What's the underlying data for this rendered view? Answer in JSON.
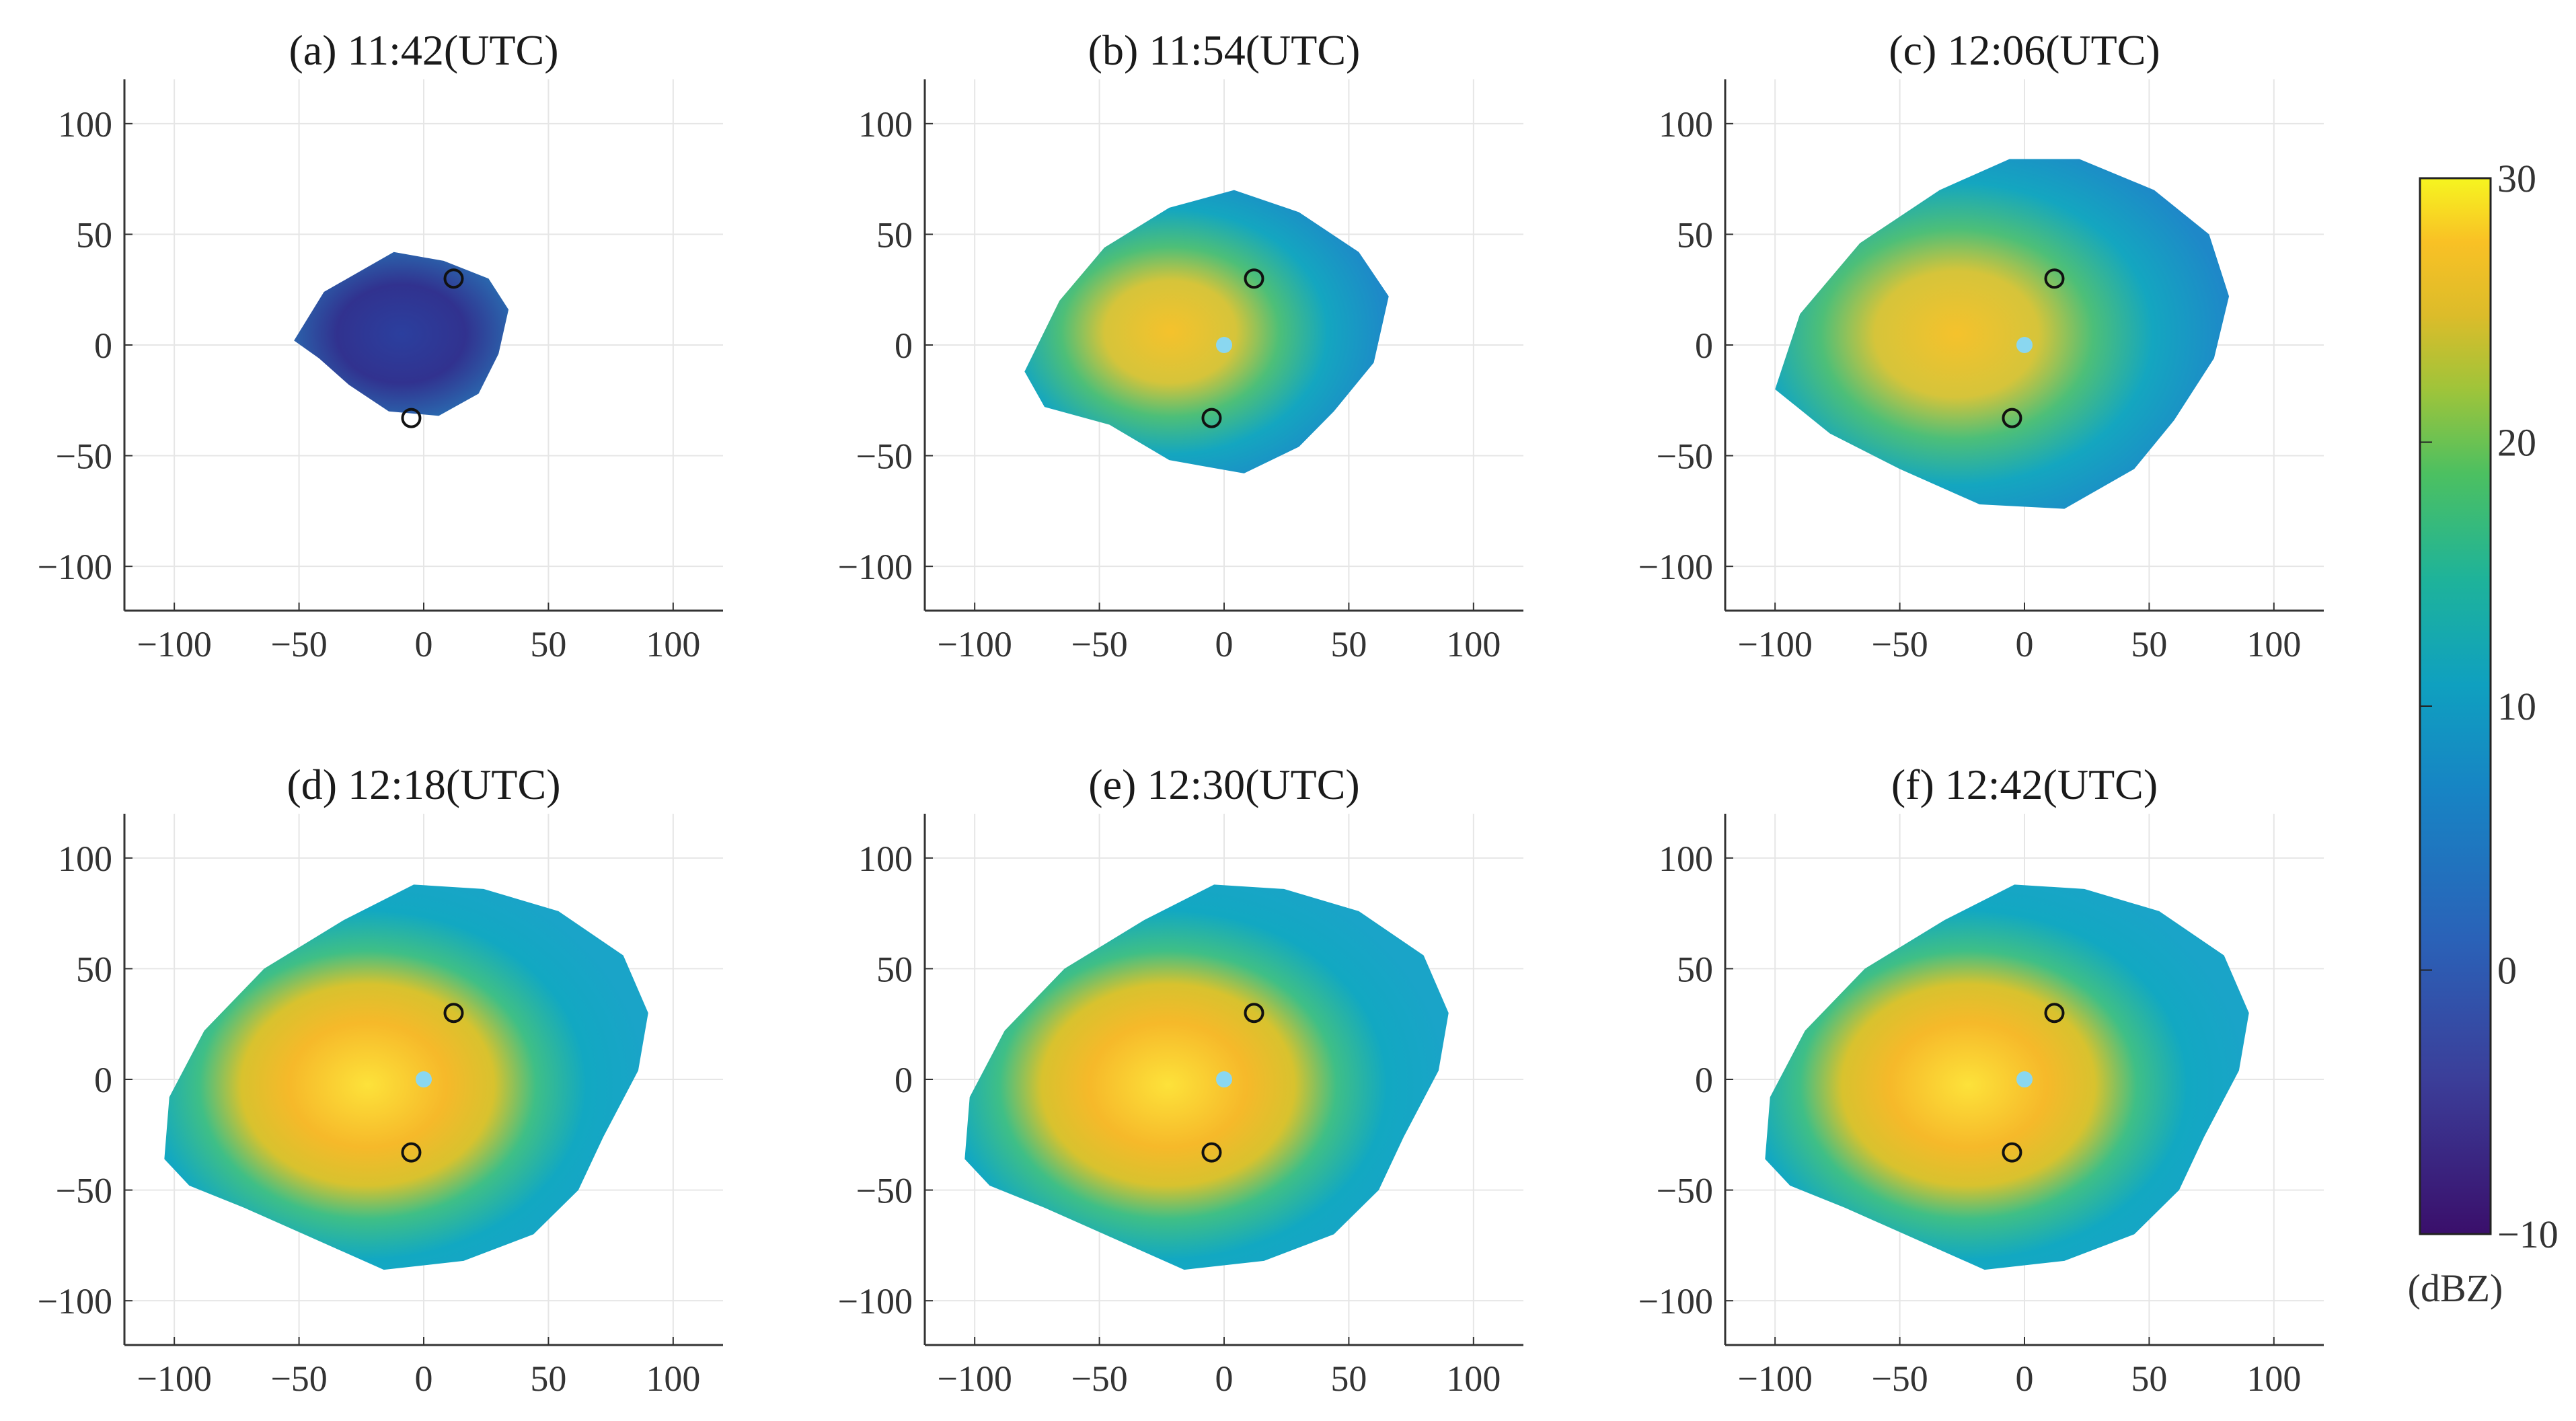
{
  "chart_data": {
    "type": "heatmap",
    "description_units": "dBZ",
    "panels": [
      {
        "label": "(a) 11:42(UTC)",
        "echo_extent": "small"
      },
      {
        "label": "(b) 11:54(UTC)",
        "echo_extent": "medium"
      },
      {
        "label": "(c) 12:06(UTC)",
        "echo_extent": "large"
      },
      {
        "label": "(d) 12:18(UTC)",
        "echo_extent": "full"
      },
      {
        "label": "(e) 12:30(UTC)",
        "echo_extent": "full"
      },
      {
        "label": "(f) 12:42(UTC)",
        "echo_extent": "full"
      }
    ],
    "x_ticks": [
      -100,
      -50,
      0,
      50,
      100
    ],
    "y_ticks": [
      100,
      50,
      0,
      -50,
      -100
    ],
    "xlim": [
      -120,
      120
    ],
    "ylim": [
      -120,
      120
    ],
    "grid": true,
    "markers": [
      {
        "x": 12,
        "y": 30
      },
      {
        "x": -5,
        "y": -33
      }
    ],
    "colorbar": {
      "min": -10,
      "max": 30,
      "ticks": [
        30,
        20,
        10,
        0,
        -10
      ],
      "label": "(dBZ)",
      "colormap": [
        "#440154",
        "#3b528b",
        "#21918c",
        "#5ec962",
        "#fde725"
      ]
    }
  }
}
